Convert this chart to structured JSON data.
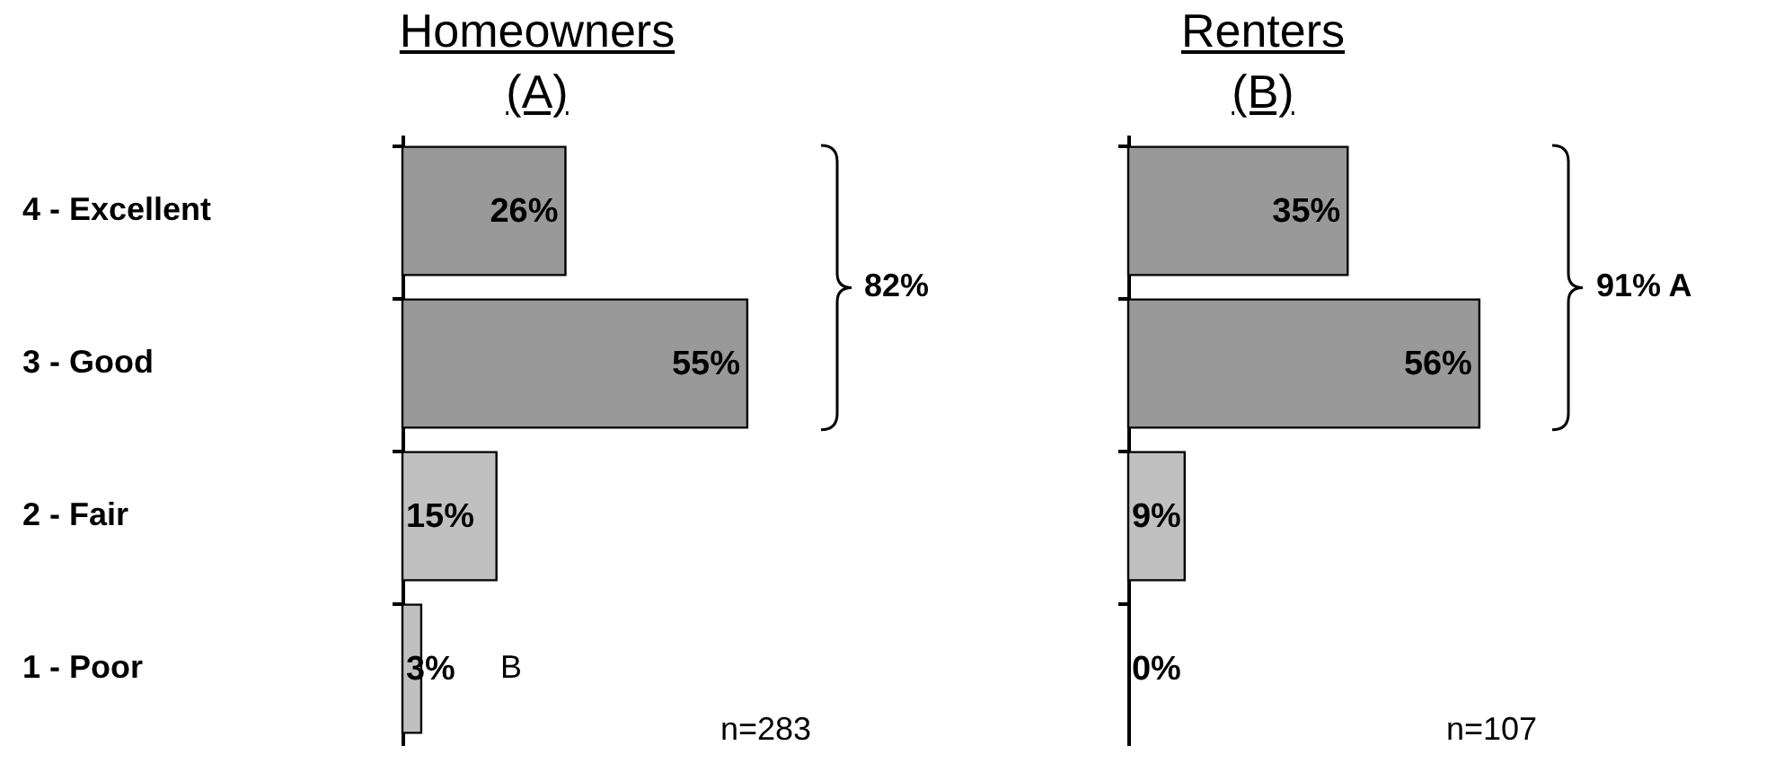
{
  "chart_data": [
    {
      "type": "bar",
      "orientation": "horizontal",
      "title": "Homeowners",
      "subtitle": "(A)",
      "categories": [
        "4  - Excellent",
        "3 - Good",
        "2 - Fair",
        "1  - Poor"
      ],
      "values": [
        26,
        55,
        15,
        3
      ],
      "value_labels": [
        "26%",
        "55%",
        "15%",
        "3%"
      ],
      "colors": [
        "#999999",
        "#999999",
        "#c0c0c0",
        "#c0c0c0"
      ],
      "tick_labels": "y",
      "annotations": [
        "82%",
        "n=283",
        {
          "text": "B",
          "x": 3,
          "y": "1  - Poor"
        }
      ]
    },
    {
      "type": "bar",
      "orientation": "horizontal",
      "title": "Renters",
      "subtitle": "(B)",
      "categories": [
        null,
        null,
        null,
        null
      ],
      "values": [
        35,
        56,
        9,
        0
      ],
      "value_labels": [
        "35%",
        "56%",
        "9%",
        "0%"
      ],
      "colors": [
        "#999999",
        "#999999",
        "#c0c0c0",
        "#c0c0c0"
      ],
      "annotations": [
        "91% A",
        "n=107"
      ]
    }
  ]
}
